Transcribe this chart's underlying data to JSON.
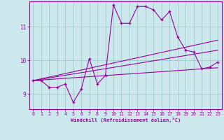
{
  "title": "",
  "xlabel": "Windchill (Refroidissement éolien,°C)",
  "ylabel": "",
  "bg_color": "#cce8ec",
  "line_color": "#990099",
  "grid_color": "#99cccc",
  "x_ticks": [
    0,
    1,
    2,
    3,
    4,
    5,
    6,
    7,
    8,
    9,
    10,
    11,
    12,
    13,
    14,
    15,
    16,
    17,
    18,
    19,
    20,
    21,
    22,
    23
  ],
  "y_ticks": [
    9,
    10,
    11
  ],
  "xlim": [
    -0.5,
    23.5
  ],
  "ylim": [
    8.55,
    11.75
  ],
  "main_x": [
    0,
    1,
    2,
    3,
    4,
    5,
    6,
    7,
    8,
    9,
    10,
    11,
    12,
    13,
    14,
    15,
    16,
    17,
    18,
    19,
    20,
    21,
    22,
    23
  ],
  "main_y": [
    9.4,
    9.4,
    9.2,
    9.2,
    9.3,
    8.75,
    9.15,
    10.05,
    9.3,
    9.55,
    11.65,
    11.1,
    11.1,
    11.6,
    11.6,
    11.5,
    11.2,
    11.45,
    10.7,
    10.3,
    10.25,
    9.75,
    9.8,
    9.95
  ],
  "line1_x": [
    0,
    23
  ],
  "line1_y": [
    9.4,
    10.3
  ],
  "line2_x": [
    0,
    23
  ],
  "line2_y": [
    9.4,
    9.78
  ],
  "line3_x": [
    0,
    23
  ],
  "line3_y": [
    9.4,
    10.6
  ]
}
